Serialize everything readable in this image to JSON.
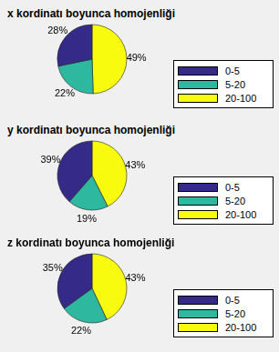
{
  "chart_data": [
    {
      "type": "pie",
      "title": "x kordinatı boyunca homojenliği",
      "categories": [
        "0-5",
        "5-20",
        "20-100"
      ],
      "values": [
        28,
        22,
        49
      ],
      "value_labels": [
        "28%",
        "22%",
        "49%"
      ],
      "data_labels": true,
      "colors": [
        "#352a87",
        "#2fb8a0",
        "#f9fb0e"
      ],
      "legend": "right"
    },
    {
      "type": "pie",
      "title": "y kordinatı boyunca homojenliği",
      "categories": [
        "0-5",
        "5-20",
        "20-100"
      ],
      "values": [
        39,
        19,
        43
      ],
      "value_labels": [
        "39%",
        "19%",
        "43%"
      ],
      "data_labels": true,
      "colors": [
        "#352a87",
        "#2fb8a0",
        "#f9fb0e"
      ],
      "legend": "right"
    },
    {
      "type": "pie",
      "title": "z kordinatı boyunca homojenliği",
      "categories": [
        "0-5",
        "5-20",
        "20-100"
      ],
      "values": [
        35,
        22,
        43
      ],
      "value_labels": [
        "35%",
        "22%",
        "43%"
      ],
      "data_labels": true,
      "colors": [
        "#352a87",
        "#2fb8a0",
        "#f9fb0e"
      ],
      "legend": "right"
    }
  ]
}
